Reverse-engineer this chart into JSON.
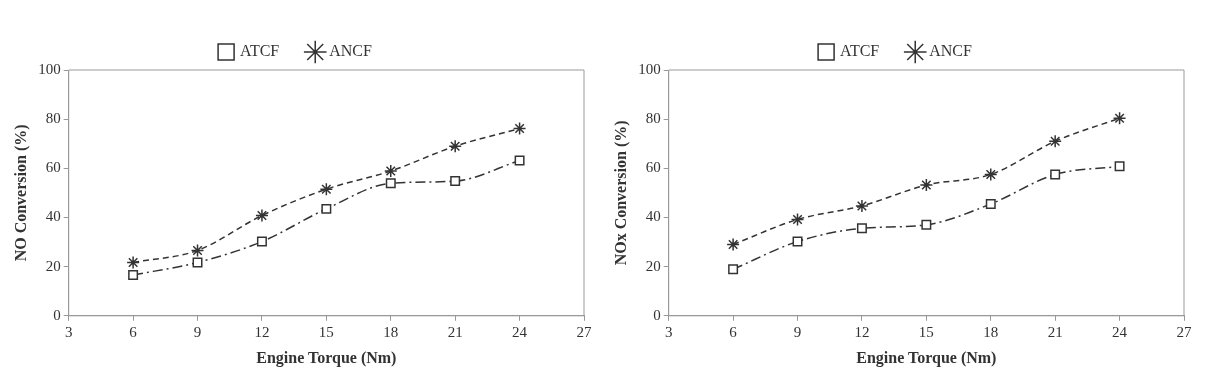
{
  "chart_data": [
    {
      "type": "line",
      "xlabel": "Engine Torque (Nm)",
      "ylabel": "NO Conversion (%)",
      "x": [
        6,
        9,
        12,
        15,
        18,
        21,
        24
      ],
      "series": [
        {
          "name": "ATCF",
          "color": "#333333",
          "values": [
            16.6,
            21.7,
            30.2,
            43.5,
            53.9,
            54.8,
            63.2
          ],
          "marker": "square",
          "line_style": "dashdot"
        },
        {
          "name": "ANCF",
          "color": "#333333",
          "values": [
            21.7,
            26.6,
            40.8,
            51.5,
            58.9,
            69.0,
            76.2
          ],
          "marker": "cross",
          "line_style": "dashed"
        }
      ],
      "xlim": [
        3,
        27
      ],
      "xticks": [
        3,
        6,
        9,
        12,
        15,
        18,
        21,
        24,
        27
      ],
      "ylim": [
        0,
        100
      ],
      "yticks": [
        0,
        20,
        40,
        60,
        80,
        100
      ],
      "grid": false,
      "legend": "top"
    },
    {
      "type": "line",
      "xlabel": "Engine Torque (Nm)",
      "ylabel": "NOx Conversion (%)",
      "x": [
        6,
        9,
        12,
        15,
        18,
        21,
        24
      ],
      "series": [
        {
          "name": "ATCF",
          "color": "#333333",
          "values": [
            18.9,
            30.2,
            35.6,
            37.0,
            45.5,
            57.5,
            60.8
          ],
          "marker": "square",
          "line_style": "dashdot"
        },
        {
          "name": "ANCF",
          "color": "#333333",
          "values": [
            29.0,
            39.2,
            44.7,
            53.2,
            57.5,
            71.0,
            80.4
          ],
          "marker": "cross",
          "line_style": "dashed"
        }
      ],
      "xlim": [
        3,
        27
      ],
      "xticks": [
        3,
        6,
        9,
        12,
        15,
        18,
        21,
        24,
        27
      ],
      "ylim": [
        0,
        100
      ],
      "yticks": [
        0,
        20,
        40,
        60,
        80,
        100
      ],
      "grid": false,
      "legend": "top"
    }
  ]
}
